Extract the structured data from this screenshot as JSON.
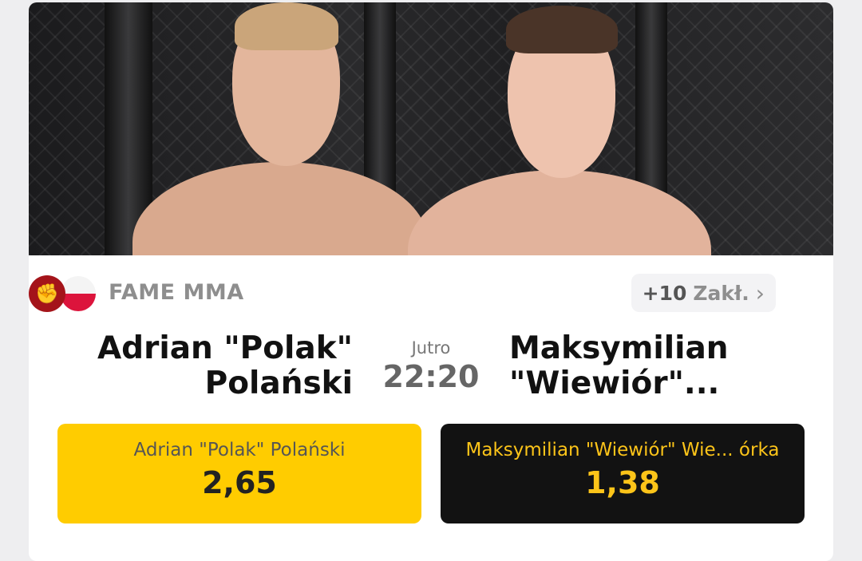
{
  "event": {
    "league": "FAME MMA",
    "league_icon": "fist-icon",
    "country_flag": "poland-flag",
    "more_bets": {
      "count": "+10",
      "label": "Zakł.",
      "icon": "chevron-right-icon"
    },
    "home": {
      "name_line1": "Adrian \"Polak\"",
      "name_line2": "Polański"
    },
    "away": {
      "name_line1": "Maksymilian",
      "name_line2": "\"Wiewiór\"..."
    },
    "day": "Jutro",
    "time": "22:20"
  },
  "odds": [
    {
      "label": "Adrian \"Polak\" Polański",
      "value": "2,65"
    },
    {
      "label": "Maksymilian \"Wiewiór\" Wie... órka",
      "value": "1,38"
    }
  ],
  "colors": {
    "accent_yellow": "#ffcc00",
    "dark": "#121212",
    "league_red": "#a4141a"
  }
}
